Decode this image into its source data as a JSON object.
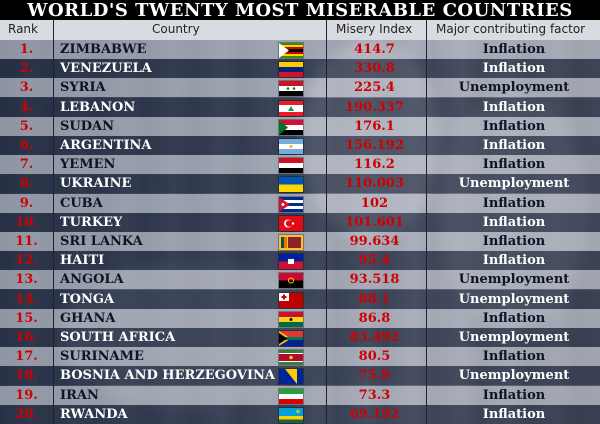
{
  "title": "WORLD'S TWENTY MOST MISERABLE COUNTRIES",
  "columns": {
    "rank": "Rank",
    "country": "Country",
    "index": "Misery Index",
    "factor": "Major contributing factor"
  },
  "rows": [
    {
      "rank": "1.",
      "country": "ZIMBABWE",
      "index": "414.7",
      "factor": "Inflation",
      "flag": "zimbabwe-flag-icon"
    },
    {
      "rank": "2.",
      "country": "VENEZUELA",
      "index": "330.8",
      "factor": "Inflation",
      "flag": "venezuela-flag-icon"
    },
    {
      "rank": "3.",
      "country": "SYRIA",
      "index": "225.4",
      "factor": "Unemployment",
      "flag": "syria-flag-icon"
    },
    {
      "rank": "4.",
      "country": "LEBANON",
      "index": "190.337",
      "factor": "Inflation",
      "flag": "lebanon-flag-icon"
    },
    {
      "rank": "5.",
      "country": "SUDAN",
      "index": "176.1",
      "factor": "Inflation",
      "flag": "sudan-flag-icon"
    },
    {
      "rank": "6.",
      "country": "ARGENTINA",
      "index": "156.192",
      "factor": "Inflation",
      "flag": "argentina-flag-icon"
    },
    {
      "rank": "7.",
      "country": "YEMEN",
      "index": "116.2",
      "factor": "Inflation",
      "flag": "yemen-flag-icon"
    },
    {
      "rank": "8.",
      "country": "UKRAINE",
      "index": "110.003",
      "factor": "Unemployment",
      "flag": "ukraine-flag-icon"
    },
    {
      "rank": "9.",
      "country": "CUBA",
      "index": "102",
      "factor": "Inflation",
      "flag": "cuba-flag-icon"
    },
    {
      "rank": "10.",
      "country": "TURKEY",
      "index": "101.601",
      "factor": "Inflation",
      "flag": "turkey-flag-icon"
    },
    {
      "rank": "11.",
      "country": "SRI LANKA",
      "index": "99.634",
      "factor": "Inflation",
      "flag": "sri-lanka-flag-icon"
    },
    {
      "rank": "12.",
      "country": "HAITI",
      "index": "95.4",
      "factor": "Inflation",
      "flag": "haiti-flag-icon"
    },
    {
      "rank": "13.",
      "country": "ANGOLA",
      "index": "93.518",
      "factor": "Unemployment",
      "flag": "angola-flag-icon"
    },
    {
      "rank": "14.",
      "country": "TONGA",
      "index": "88.1",
      "factor": "Unemployment",
      "flag": "tonga-flag-icon"
    },
    {
      "rank": "15.",
      "country": "GHANA",
      "index": "86.8",
      "factor": "Inflation",
      "flag": "ghana-flag-icon"
    },
    {
      "rank": "16.",
      "country": "SOUTH AFRICA",
      "index": "83.492",
      "factor": "Unemployment",
      "flag": "south-africa-flag-icon"
    },
    {
      "rank": "17.",
      "country": "SURINAME",
      "index": "80.5",
      "factor": "Inflation",
      "flag": "suriname-flag-icon"
    },
    {
      "rank": "18.",
      "country": "BOSNIA AND HERZEGOVINA",
      "index": "75.9",
      "factor": "Unemployment",
      "flag": "bosnia-flag-icon"
    },
    {
      "rank": "19.",
      "country": "IRAN",
      "index": "73.3",
      "factor": "Inflation",
      "flag": "iran-flag-icon"
    },
    {
      "rank": "20.",
      "country": "RWANDA",
      "index": "69.192",
      "factor": "Inflation",
      "flag": "rwanda-flag-icon"
    }
  ],
  "colors": {
    "rank_red": "#d00000",
    "header_bg": "#d9dbe2",
    "title_bg": "#000000"
  }
}
